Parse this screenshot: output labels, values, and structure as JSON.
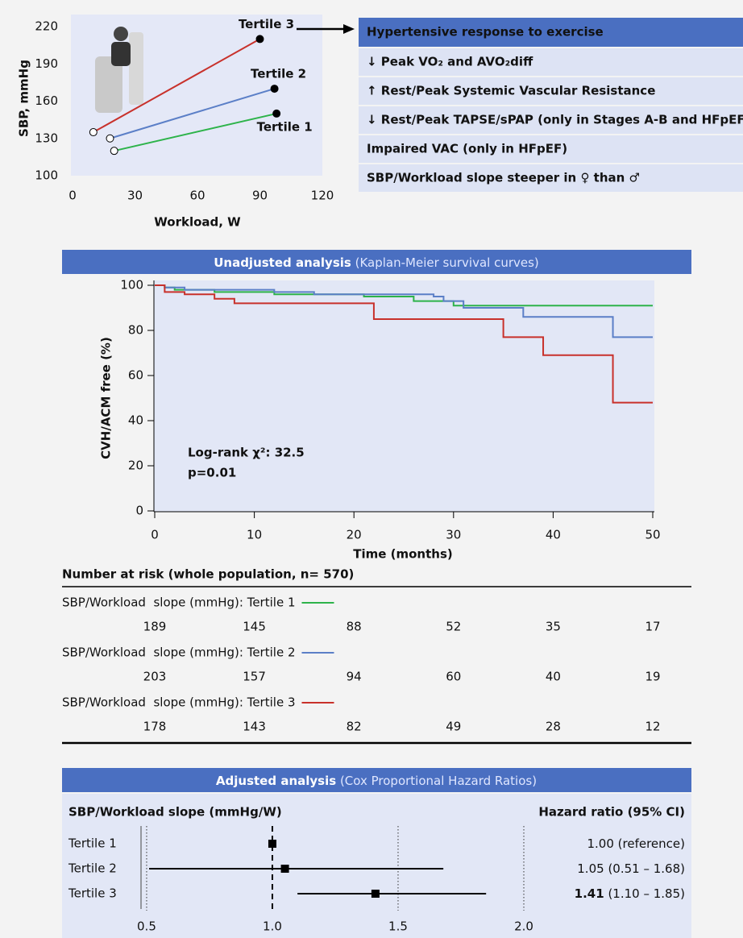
{
  "chart_data": [
    {
      "type": "line",
      "x_label": "Workload, W",
      "y_label": "SBP, mmHg",
      "xlim": [
        0,
        120
      ],
      "xticks": [
        0,
        30,
        60,
        90,
        120
      ],
      "ylim": [
        100,
        220
      ],
      "yticks": [
        100,
        130,
        160,
        190,
        220
      ],
      "series": [
        {
          "name": "Tertile 1",
          "color": "#2db34a",
          "x": [
            20,
            98
          ],
          "values": [
            120,
            150
          ]
        },
        {
          "name": "Tertile 2",
          "color": "#5b7fc7",
          "x": [
            18,
            97
          ],
          "values": [
            130,
            170
          ]
        },
        {
          "name": "Tertile 3",
          "color": "#c8312b",
          "x": [
            10,
            90
          ],
          "values": [
            135,
            210
          ]
        }
      ]
    },
    {
      "type": "step",
      "title": "Unadjusted analysis",
      "subtitle": "(Kaplan-Meier survival curves)",
      "x_label": "Time (months)",
      "y_label": "CVH/ACM free (%)",
      "xlim": [
        0,
        50
      ],
      "xticks": [
        0,
        10,
        20,
        30,
        40,
        50
      ],
      "ylim": [
        0,
        100
      ],
      "yticks": [
        0,
        20,
        40,
        60,
        80,
        100
      ],
      "annotations": [
        "Log-rank χ²: 32.5",
        "p=0.01"
      ],
      "risk_title": "Number at risk (whole population, n= 570)",
      "series": [
        {
          "name": "SBP/Workload  slope (mmHg): Tertile 1",
          "color": "#2db34a",
          "x": [
            0,
            1,
            2,
            6,
            12,
            16,
            21,
            26,
            30,
            50
          ],
          "values": [
            100,
            99,
            98,
            97,
            96,
            96,
            95,
            93,
            91,
            91
          ],
          "at_risk": [
            189,
            145,
            88,
            52,
            35,
            17
          ]
        },
        {
          "name": "SBP/Workload  slope (mmHg): Tertile 2",
          "color": "#5b7fc7",
          "x": [
            0,
            1,
            3,
            12,
            16,
            28,
            29,
            31,
            37,
            46,
            50
          ],
          "values": [
            100,
            99,
            98,
            97,
            96,
            95,
            93,
            90,
            86,
            77,
            77
          ],
          "at_risk": [
            203,
            157,
            94,
            60,
            40,
            19
          ]
        },
        {
          "name": "SBP/Workload  slope (mmHg): Tertile 3",
          "color": "#c8312b",
          "x": [
            0,
            1,
            3,
            6,
            8,
            22,
            35,
            39,
            46,
            50
          ],
          "values": [
            100,
            97,
            96,
            94,
            92,
            85,
            77,
            69,
            48,
            48
          ],
          "at_risk": [
            178,
            143,
            82,
            49,
            28,
            12
          ]
        }
      ]
    },
    {
      "type": "forest",
      "title": "Adjusted analysis",
      "subtitle": "(Cox Proportional Hazard Ratios)",
      "category_header": "SBP/Workload slope (mmHg/W)",
      "value_header": "Hazard ratio (95% CI)",
      "categories": [
        "Tertile 1",
        "Tertile 2",
        "Tertile 3"
      ],
      "values": [
        1,
        1.05,
        1.41
      ],
      "value_labels": [
        "1.00",
        "1.05",
        "1.41"
      ],
      "lower": [
        null,
        0.51,
        1.1
      ],
      "upper": [
        null,
        1.68,
        1.85
      ],
      "ci_labels": [
        "(reference)",
        "(0.51 – 1.68)",
        "(1.10 – 1.85)"
      ],
      "bold": [
        false,
        false,
        true
      ],
      "ref_line": 1,
      "xlim": [
        0.47,
        2.1
      ],
      "xticks": [
        0.5,
        {
          "value": 1,
          "label": "1.0"
        },
        1.5,
        {
          "value": 2,
          "label": "2.0"
        }
      ]
    }
  ],
  "findings": {
    "title": "Hypertensive response to exercise",
    "items": [
      "↓ Peak VO₂ and AVO₂diff",
      "↑ Rest/Peak Systemic Vascular Resistance",
      "↓ Rest/Peak TAPSE/sPAP (only in Stages A-B and HFpEF)",
      "Impaired VAC (only in HFpEF)",
      "SBP/Workload slope steeper in ♀ than ♂"
    ]
  }
}
